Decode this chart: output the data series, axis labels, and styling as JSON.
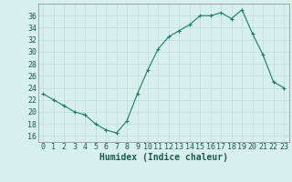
{
  "x": [
    0,
    1,
    2,
    3,
    4,
    5,
    6,
    7,
    8,
    9,
    10,
    11,
    12,
    13,
    14,
    15,
    16,
    17,
    18,
    19,
    20,
    21,
    22,
    23
  ],
  "y": [
    23,
    22,
    21,
    20,
    19.5,
    18,
    17,
    16.5,
    18.5,
    23,
    27,
    30.5,
    32.5,
    33.5,
    34.5,
    36,
    36,
    36.5,
    35.5,
    37,
    33,
    29.5,
    25,
    24
  ],
  "line_color": "#1a7a6e",
  "marker": "+",
  "marker_size": 3.5,
  "bg_color": "#d8f0ec",
  "grid_color_major": "#c0dcd8",
  "grid_color_minor": "#c0dcd8",
  "xlabel": "Humidex (Indice chaleur)",
  "xlim": [
    -0.5,
    23.5
  ],
  "ylim": [
    15,
    38
  ],
  "yticks": [
    16,
    18,
    20,
    22,
    24,
    26,
    28,
    30,
    32,
    34,
    36
  ],
  "xticks": [
    0,
    1,
    2,
    3,
    4,
    5,
    6,
    7,
    8,
    9,
    10,
    11,
    12,
    13,
    14,
    15,
    16,
    17,
    18,
    19,
    20,
    21,
    22,
    23
  ],
  "xlabel_fontsize": 7,
  "tick_fontsize": 6
}
